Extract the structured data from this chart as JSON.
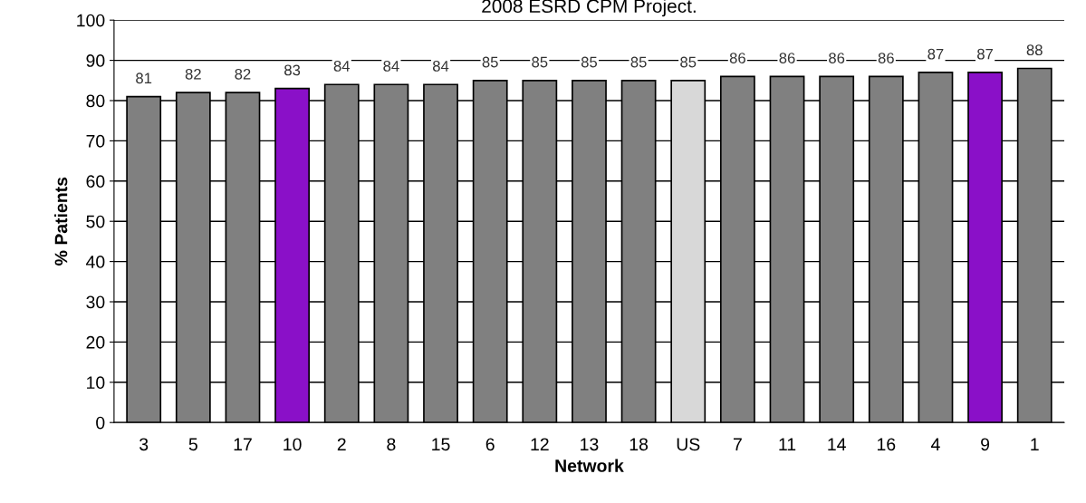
{
  "chart_data": {
    "type": "bar",
    "title": "2008 ESRD CPM Project.",
    "xlabel": "Network",
    "ylabel": "% Patients",
    "categories": [
      "3",
      "5",
      "17",
      "10",
      "2",
      "8",
      "15",
      "6",
      "12",
      "13",
      "18",
      "US",
      "7",
      "11",
      "14",
      "16",
      "4",
      "9",
      "1"
    ],
    "values": [
      81,
      82,
      82,
      83,
      84,
      84,
      84,
      85,
      85,
      85,
      85,
      85,
      86,
      86,
      86,
      86,
      87,
      87,
      88
    ],
    "colors": [
      "#808080",
      "#808080",
      "#808080",
      "#8a10c8",
      "#808080",
      "#808080",
      "#808080",
      "#808080",
      "#808080",
      "#808080",
      "#808080",
      "#d8d8d8",
      "#808080",
      "#808080",
      "#808080",
      "#808080",
      "#808080",
      "#8a10c8",
      "#808080"
    ],
    "ylim": [
      0,
      100
    ],
    "yticks": [
      0,
      10,
      20,
      30,
      40,
      50,
      60,
      70,
      80,
      90,
      100
    ],
    "grid": "y",
    "data_labels": true
  }
}
